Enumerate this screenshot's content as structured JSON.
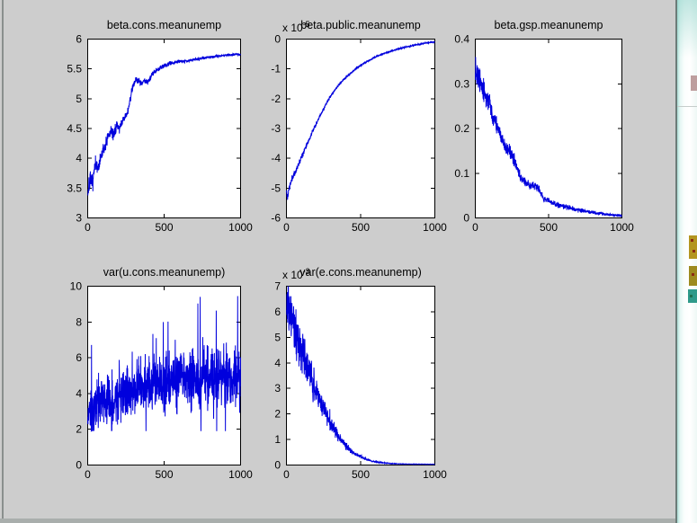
{
  "window": {
    "figure_bg": "#cdcdcd",
    "axes_bg": "#ffffff",
    "axis_color": "#000000"
  },
  "colors": {
    "figure_bg": "#cdcdcd",
    "axes_bg": "#ffffff",
    "trace_blue": "#0000dd",
    "border_gray": "#8a8f8d",
    "bottom_border": "#a9aeac",
    "edge_line": "#6b7b78",
    "strip_pink": "#bd9e9e",
    "strip_yellow": "#b3951f",
    "strip_olive": "#9d8a1e",
    "strip_teal": "#2f9a8a",
    "strip_red": "#8a2a12",
    "strip_darkgreen": "#1f6f4f"
  },
  "chart_data": [
    {
      "id": "beta-cons",
      "type": "line",
      "title": "beta.cons.meanunemp",
      "xlabel": "",
      "ylabel": "",
      "xlim": [
        0,
        1000
      ],
      "ylim": [
        3,
        6
      ],
      "grid": false,
      "legend": null,
      "x_ticks": [
        0,
        500,
        1000
      ],
      "x_tick_labels": [
        "0",
        "500",
        "1000"
      ],
      "y_ticks": [
        3,
        3.5,
        4,
        4.5,
        5,
        5.5,
        6
      ],
      "y_tick_labels": [
        "3",
        "3.5",
        "4",
        "4.5",
        "5",
        "5.5",
        "6"
      ],
      "exponent": null,
      "line_color": "#0000dd",
      "seed": 7,
      "n": 1000,
      "noise": {
        "model": "decay",
        "a0": 0.07,
        "a1": 0.006,
        "tau": 300
      },
      "keypoints": [
        [
          0,
          3.42
        ],
        [
          15,
          3.62
        ],
        [
          30,
          3.58
        ],
        [
          50,
          3.88
        ],
        [
          70,
          3.84
        ],
        [
          90,
          4.05
        ],
        [
          110,
          4.18
        ],
        [
          130,
          4.32
        ],
        [
          150,
          4.46
        ],
        [
          170,
          4.4
        ],
        [
          190,
          4.56
        ],
        [
          210,
          4.5
        ],
        [
          230,
          4.64
        ],
        [
          250,
          4.7
        ],
        [
          270,
          4.86
        ],
        [
          290,
          5.18
        ],
        [
          310,
          5.3
        ],
        [
          330,
          5.32
        ],
        [
          350,
          5.26
        ],
        [
          370,
          5.3
        ],
        [
          390,
          5.28
        ],
        [
          410,
          5.36
        ],
        [
          430,
          5.44
        ],
        [
          460,
          5.5
        ],
        [
          500,
          5.55
        ],
        [
          550,
          5.6
        ],
        [
          600,
          5.63
        ],
        [
          650,
          5.63
        ],
        [
          700,
          5.66
        ],
        [
          750,
          5.68
        ],
        [
          800,
          5.7
        ],
        [
          850,
          5.71
        ],
        [
          900,
          5.73
        ],
        [
          950,
          5.74
        ],
        [
          1000,
          5.75
        ]
      ]
    },
    {
      "id": "beta-public",
      "type": "line",
      "title": "beta.public.meanunemp",
      "xlabel": "",
      "ylabel": "",
      "xlim": [
        0,
        1000
      ],
      "ylim": [
        -6,
        0
      ],
      "grid": false,
      "legend": null,
      "x_ticks": [
        0,
        500,
        1000
      ],
      "x_tick_labels": [
        "0",
        "500",
        "1000"
      ],
      "y_ticks": [
        -6,
        -5,
        -4,
        -3,
        -2,
        -1,
        0
      ],
      "y_tick_labels": [
        "-6",
        "-5",
        "-4",
        "-3",
        "-2",
        "-1",
        "0"
      ],
      "exponent": {
        "base": "x 10",
        "exp": "-5"
      },
      "line_color": "#0000dd",
      "seed": 11,
      "n": 1000,
      "noise": {
        "model": "decay",
        "a0": 0.05,
        "a1": 0.008,
        "tau": 250
      },
      "keypoints": [
        [
          0,
          -5.1
        ],
        [
          8,
          -5.35
        ],
        [
          15,
          -5.05
        ],
        [
          25,
          -4.9
        ],
        [
          40,
          -4.65
        ],
        [
          55,
          -4.5
        ],
        [
          70,
          -4.35
        ],
        [
          85,
          -4.15
        ],
        [
          100,
          -3.95
        ],
        [
          115,
          -3.8
        ],
        [
          130,
          -3.6
        ],
        [
          145,
          -3.45
        ],
        [
          160,
          -3.3
        ],
        [
          175,
          -3.1
        ],
        [
          190,
          -2.95
        ],
        [
          205,
          -2.8
        ],
        [
          220,
          -2.65
        ],
        [
          240,
          -2.45
        ],
        [
          260,
          -2.25
        ],
        [
          280,
          -2.05
        ],
        [
          300,
          -1.9
        ],
        [
          330,
          -1.68
        ],
        [
          360,
          -1.5
        ],
        [
          390,
          -1.33
        ],
        [
          420,
          -1.2
        ],
        [
          450,
          -1.07
        ],
        [
          480,
          -0.95
        ],
        [
          510,
          -0.85
        ],
        [
          540,
          -0.76
        ],
        [
          570,
          -0.68
        ],
        [
          600,
          -0.6
        ],
        [
          640,
          -0.52
        ],
        [
          680,
          -0.44
        ],
        [
          720,
          -0.38
        ],
        [
          760,
          -0.32
        ],
        [
          800,
          -0.27
        ],
        [
          840,
          -0.23
        ],
        [
          880,
          -0.19
        ],
        [
          920,
          -0.15
        ],
        [
          960,
          -0.12
        ],
        [
          1000,
          -0.1
        ]
      ]
    },
    {
      "id": "beta-gsp",
      "type": "line",
      "title": "beta.gsp.meanunemp",
      "xlabel": "",
      "ylabel": "",
      "xlim": [
        0,
        1000
      ],
      "ylim": [
        0,
        0.4
      ],
      "grid": false,
      "legend": null,
      "x_ticks": [
        0,
        500,
        1000
      ],
      "x_tick_labels": [
        "0",
        "500",
        "1000"
      ],
      "y_ticks": [
        0,
        0.1,
        0.2,
        0.3,
        0.4
      ],
      "y_tick_labels": [
        "0",
        "0.1",
        "0.2",
        "0.3",
        "0.4"
      ],
      "exponent": null,
      "line_color": "#0000dd",
      "seed": 13,
      "n": 1000,
      "noise": {
        "model": "decay",
        "a0": 0.012,
        "a1": 0.0012,
        "tau": 280
      },
      "keypoints": [
        [
          0,
          0.345
        ],
        [
          10,
          0.325
        ],
        [
          20,
          0.312
        ],
        [
          35,
          0.3
        ],
        [
          50,
          0.285
        ],
        [
          65,
          0.278
        ],
        [
          80,
          0.262
        ],
        [
          95,
          0.268
        ],
        [
          110,
          0.24
        ],
        [
          120,
          0.218
        ],
        [
          135,
          0.222
        ],
        [
          150,
          0.2
        ],
        [
          165,
          0.19
        ],
        [
          180,
          0.176
        ],
        [
          195,
          0.165
        ],
        [
          210,
          0.155
        ],
        [
          230,
          0.15
        ],
        [
          250,
          0.143
        ],
        [
          270,
          0.125
        ],
        [
          290,
          0.11
        ],
        [
          310,
          0.09
        ],
        [
          330,
          0.083
        ],
        [
          350,
          0.078
        ],
        [
          370,
          0.073
        ],
        [
          390,
          0.074
        ],
        [
          410,
          0.072
        ],
        [
          430,
          0.066
        ],
        [
          450,
          0.052
        ],
        [
          470,
          0.042
        ],
        [
          500,
          0.038
        ],
        [
          550,
          0.03
        ],
        [
          600,
          0.027
        ],
        [
          650,
          0.022
        ],
        [
          700,
          0.018
        ],
        [
          750,
          0.015
        ],
        [
          800,
          0.012
        ],
        [
          850,
          0.01
        ],
        [
          900,
          0.008
        ],
        [
          950,
          0.006
        ],
        [
          1000,
          0.005
        ]
      ]
    },
    {
      "id": "var-u-cons",
      "type": "line",
      "title": "var(u.cons.meanunemp)",
      "xlabel": "",
      "ylabel": "",
      "xlim": [
        0,
        1000
      ],
      "ylim": [
        0,
        10
      ],
      "grid": false,
      "legend": null,
      "x_ticks": [
        0,
        500,
        1000
      ],
      "x_tick_labels": [
        "0",
        "500",
        "1000"
      ],
      "y_ticks": [
        0,
        2,
        4,
        6,
        8,
        10
      ],
      "y_tick_labels": [
        "0",
        "2",
        "4",
        "6",
        "8",
        "10"
      ],
      "exponent": null,
      "line_color": "#0000dd",
      "seed": 17,
      "n": 1000,
      "noise": {
        "model": "band",
        "sigma": 0.78,
        "spike_prob": 0.02,
        "spike_min": 1.0,
        "spike_max": 4.0,
        "up_bias": 0.75,
        "clamp": [
          1.9,
          9.45
        ]
      },
      "keypoints": [
        [
          0,
          2.9
        ],
        [
          50,
          3.15
        ],
        [
          100,
          3.4
        ],
        [
          150,
          3.6
        ],
        [
          200,
          3.8
        ],
        [
          250,
          3.95
        ],
        [
          300,
          4.1
        ],
        [
          350,
          4.3
        ],
        [
          400,
          4.45
        ],
        [
          450,
          4.55
        ],
        [
          500,
          4.6
        ],
        [
          550,
          4.7
        ],
        [
          600,
          4.8
        ],
        [
          650,
          4.9
        ],
        [
          700,
          5.0
        ],
        [
          750,
          4.9
        ],
        [
          800,
          5.0
        ],
        [
          850,
          4.9
        ],
        [
          900,
          5.0
        ],
        [
          950,
          4.9
        ],
        [
          1000,
          4.75
        ]
      ]
    },
    {
      "id": "var-e-cons",
      "type": "line",
      "title": "var(e.cons.meanunemp)",
      "xlabel": "",
      "ylabel": "",
      "xlim": [
        0,
        1000
      ],
      "ylim": [
        0,
        7
      ],
      "grid": false,
      "legend": null,
      "x_ticks": [
        0,
        500,
        1000
      ],
      "x_tick_labels": [
        "0",
        "500",
        "1000"
      ],
      "y_ticks": [
        0,
        1,
        2,
        3,
        4,
        5,
        6,
        7
      ],
      "y_tick_labels": [
        "0",
        "1",
        "2",
        "3",
        "4",
        "5",
        "6",
        "7"
      ],
      "exponent": {
        "base": "x 10",
        "exp": "-3"
      },
      "line_color": "#0000dd",
      "seed": 19,
      "n": 1000,
      "noise": {
        "model": "mixed",
        "mult": 0.09,
        "add0": 0.3,
        "tau": 140,
        "floor": 0.02
      },
      "keypoints": [
        [
          0,
          6.2
        ],
        [
          8,
          6.6
        ],
        [
          15,
          6.1
        ],
        [
          25,
          5.9
        ],
        [
          40,
          5.6
        ],
        [
          60,
          5.2
        ],
        [
          80,
          4.85
        ],
        [
          100,
          4.5
        ],
        [
          120,
          4.15
        ],
        [
          140,
          3.8
        ],
        [
          160,
          3.5
        ],
        [
          180,
          3.2
        ],
        [
          200,
          2.9
        ],
        [
          220,
          2.6
        ],
        [
          240,
          2.35
        ],
        [
          260,
          2.1
        ],
        [
          280,
          1.85
        ],
        [
          300,
          1.6
        ],
        [
          320,
          1.4
        ],
        [
          340,
          1.2
        ],
        [
          360,
          1.05
        ],
        [
          380,
          0.9
        ],
        [
          400,
          0.75
        ],
        [
          430,
          0.58
        ],
        [
          460,
          0.45
        ],
        [
          490,
          0.35
        ],
        [
          520,
          0.27
        ],
        [
          550,
          0.2
        ],
        [
          580,
          0.15
        ],
        [
          620,
          0.11
        ],
        [
          660,
          0.08
        ],
        [
          700,
          0.06
        ],
        [
          750,
          0.05
        ],
        [
          800,
          0.04
        ],
        [
          900,
          0.035
        ],
        [
          1000,
          0.03
        ]
      ]
    }
  ]
}
